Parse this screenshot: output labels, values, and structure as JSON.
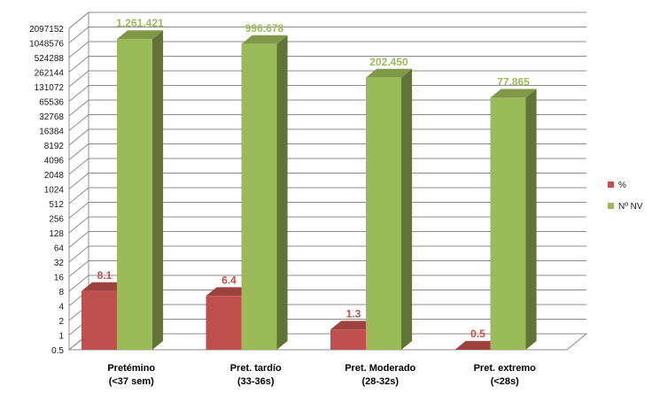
{
  "chart_data": {
    "type": "bar",
    "title": "",
    "xlabel": "",
    "ylabel": "",
    "y_scale": "log2",
    "ylim": [
      0.5,
      2097152
    ],
    "y_ticks": [
      0.5,
      1,
      2,
      4,
      8,
      16,
      32,
      64,
      128,
      256,
      512,
      1024,
      2048,
      4096,
      8192,
      16384,
      32768,
      65536,
      131072,
      262144,
      524288,
      1048576,
      2097152
    ],
    "categories": [
      [
        "Pretémino",
        "(<37 sem)"
      ],
      [
        "Pret. tardío",
        "(33-36s)"
      ],
      [
        "Pret. Moderado",
        "(28-32s)"
      ],
      [
        "Pret. extremo",
        "(<28s)"
      ]
    ],
    "series": [
      {
        "name": "%",
        "values": [
          8.1,
          6.4,
          1.3,
          0.5
        ],
        "labels": [
          "8.1",
          "6.4",
          "1.3",
          "0.5"
        ],
        "color": "#c0504d"
      },
      {
        "name": "Nº NV",
        "values": [
          1261421,
          996678,
          202450,
          77865
        ],
        "labels": [
          "1.261.421",
          "996.678",
          "202.450",
          "77.865"
        ],
        "color": "#9bbb59"
      }
    ],
    "grid": true,
    "legend_position": "right"
  }
}
